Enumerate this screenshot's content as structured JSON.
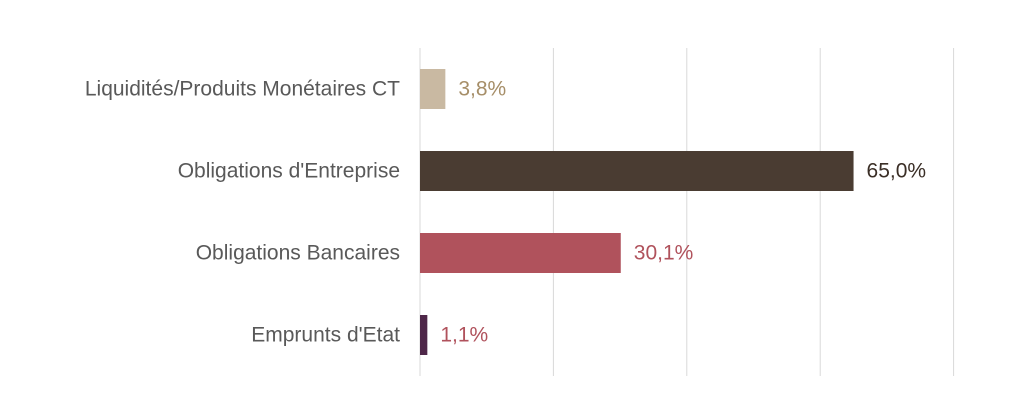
{
  "chart_data": {
    "type": "bar",
    "orientation": "horizontal",
    "categories": [
      "Liquidités/Produits Monétaires CT",
      "Obligations d'Entreprise",
      "Obligations Bancaires",
      "Emprunts d'Etat"
    ],
    "values": [
      3.8,
      65.0,
      30.1,
      1.1
    ],
    "data_labels": [
      "3,8%",
      "65,0%",
      "30,1%",
      "1,1%"
    ],
    "bar_colors": [
      "#c9b9a2",
      "#4a3c32",
      "#b0525c",
      "#4e2749"
    ],
    "label_colors": [
      "#a68e68",
      "#3a2e26",
      "#b0525c",
      "#b0525c"
    ],
    "xlim": [
      0,
      80
    ],
    "grid": true,
    "legend": "none",
    "title": "",
    "xlabel": "",
    "ylabel": ""
  }
}
